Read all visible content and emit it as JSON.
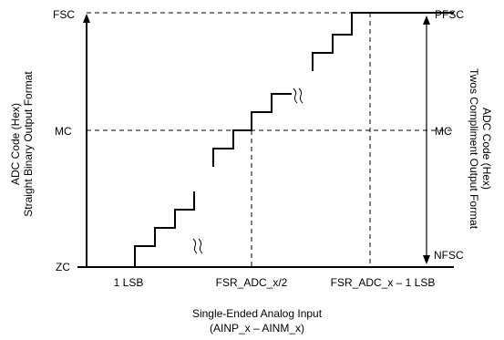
{
  "diagram": {
    "left_levels": {
      "top": "FSC",
      "mid": "MC",
      "bottom": "ZC"
    },
    "right_levels": {
      "top": "PFSC",
      "mid": "MC",
      "bottom": "NFSC"
    },
    "x_ticks": {
      "first": "1 LSB",
      "mid": "FSR_ADC_x/2",
      "last": "FSR_ADC_x – 1 LSB"
    },
    "left_axis_title": [
      "ADC Code (Hex)",
      "Straight Binary Output Format"
    ],
    "right_axis_title": [
      "ADC Code (Hex)",
      "Twos Compliment Output Format"
    ],
    "x_axis_title": [
      "Single-Ended Analog Input",
      "(AINP_x – AINM_x)"
    ],
    "colors": {
      "line": "#000000",
      "background": "#ffffff"
    }
  }
}
